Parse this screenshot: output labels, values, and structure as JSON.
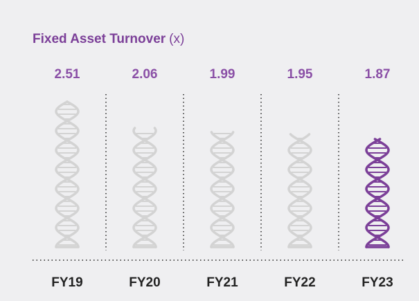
{
  "chart_data": {
    "type": "pictograph",
    "title": "Fixed Asset Turnover",
    "unit": "(x)",
    "categories": [
      "FY19",
      "FY20",
      "FY21",
      "FY22",
      "FY23"
    ],
    "values": [
      2.51,
      2.06,
      1.99,
      1.95,
      1.87
    ],
    "colors": [
      "#d3d3d3",
      "#d3d3d3",
      "#d3d3d3",
      "#d3d3d3",
      "#7b3f98"
    ]
  }
}
